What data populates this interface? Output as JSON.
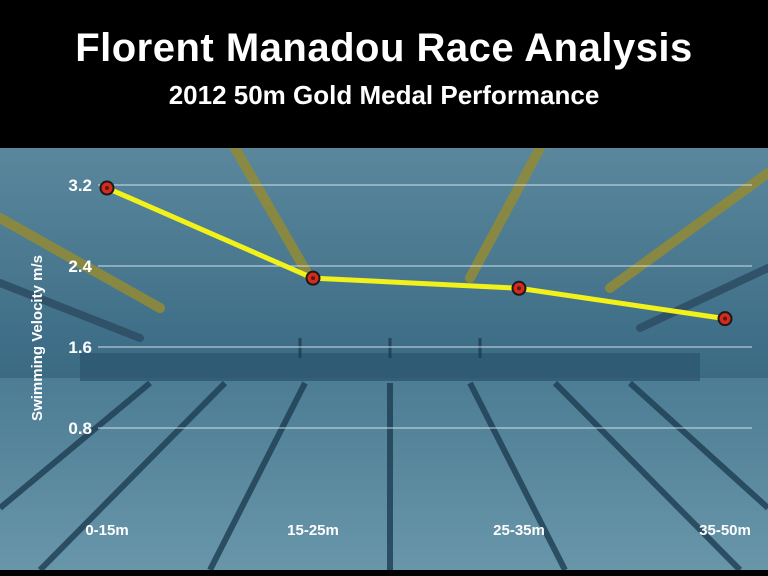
{
  "header": {
    "title": "Florent Manadou Race Analysis",
    "subtitle": "2012 50m Gold Medal Performance"
  },
  "colors": {
    "line": "#f2f21a",
    "marker_fill": "#d62a1c",
    "marker_stroke": "#1a1a1a",
    "grid": "#d9e6ee",
    "text": "#ffffff",
    "water_top": "#4f7e95",
    "water_bottom": "#2f5a74"
  },
  "chart_data": {
    "type": "line",
    "title": "Florent Manadou Race Analysis",
    "subtitle": "2012 50m Gold Medal Performance",
    "xlabel": "",
    "ylabel": "Swimming Velocity m/s",
    "categories": [
      "0-15m",
      "15-25m",
      "25-35m",
      "35-50m"
    ],
    "series": [
      {
        "values": [
          3.17,
          2.28,
          2.18,
          1.88
        ]
      }
    ],
    "yticks": [
      0.8,
      1.6,
      2.4,
      3.2
    ],
    "ylim": [
      0,
      3.6
    ],
    "grid": true,
    "legend": "none",
    "background": "underwater swimming pool photo"
  }
}
